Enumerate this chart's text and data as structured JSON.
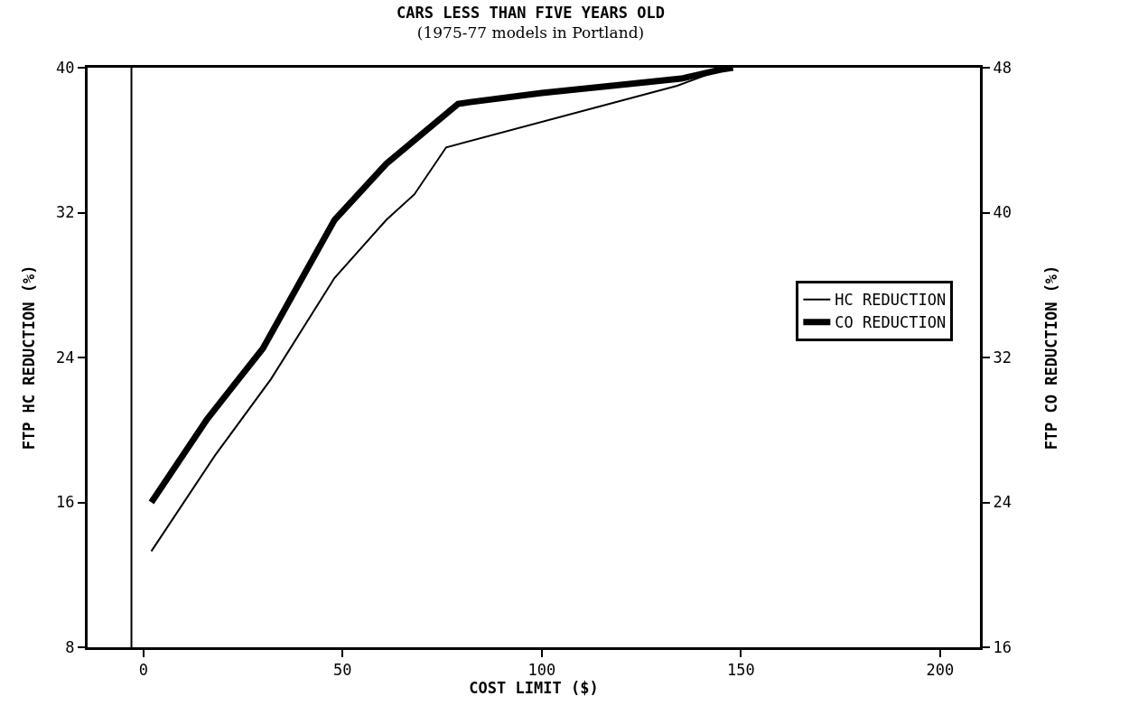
{
  "chart_data": {
    "type": "line",
    "title": "CARS LESS THAN FIVE YEARS OLD",
    "subtitle": "(1975-77 models in Portland)",
    "xlabel": "COST LIMIT ($)",
    "ylabel": "FTP HC REDUCTION (%)",
    "y2label": "FTP CO REDUCTION (%)",
    "xlim": [
      -14,
      210
    ],
    "xticks": [
      0,
      50,
      100,
      150,
      200
    ],
    "ylim": [
      8,
      40
    ],
    "yticks": [
      8,
      16,
      24,
      32,
      40
    ],
    "y2lim": [
      16,
      48
    ],
    "y2ticks": [
      16,
      24,
      32,
      40,
      48
    ],
    "grid": false,
    "legend": "right",
    "line_style": "solid",
    "ref_lines": [
      {
        "axis": "x",
        "value": -3,
        "label": null,
        "color": "#000000"
      }
    ],
    "series": [
      {
        "name": "HC REDUCTION",
        "color": "#000000",
        "axis": "y",
        "x": [
          2,
          18,
          32,
          48,
          61,
          68,
          76,
          134,
          145
        ],
        "values": [
          13.3,
          18.6,
          22.8,
          28.4,
          31.6,
          33,
          35.6,
          39,
          39.9
        ]
      },
      {
        "name": "CO REDUCTION",
        "color": "#000000",
        "axis": "y2",
        "x": [
          2,
          16,
          30,
          48,
          61,
          79,
          82,
          100,
          122,
          135,
          145,
          148
        ],
        "values": [
          24,
          28.6,
          32.5,
          39.6,
          42.7,
          46,
          46.1,
          46.6,
          47.1,
          47.4,
          47.9,
          48
        ]
      }
    ]
  }
}
